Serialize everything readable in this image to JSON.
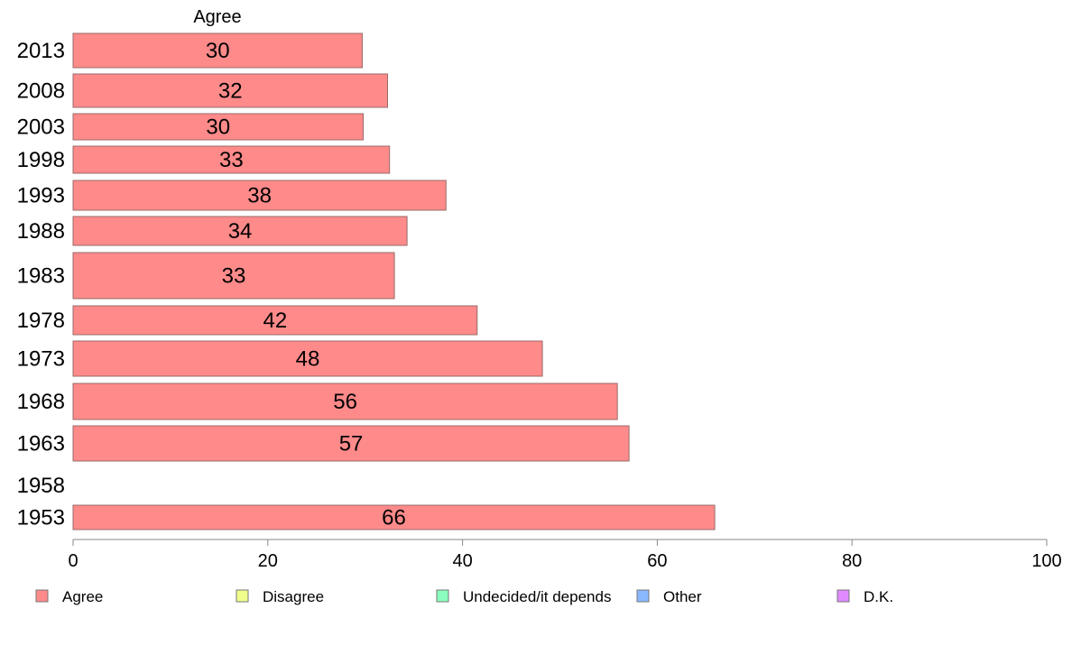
{
  "chart_data": {
    "type": "bar",
    "orientation": "horizontal",
    "title": "Agree",
    "categories": [
      "2013",
      "2008",
      "2003",
      "1998",
      "1993",
      "1988",
      "1983",
      "1978",
      "1973",
      "1968",
      "1963",
      "1958",
      "1953"
    ],
    "series": [
      {
        "name": "Agree",
        "color": "#ff8a8a",
        "values": [
          29.7,
          32.3,
          29.8,
          32.5,
          38.3,
          34.3,
          33.0,
          41.5,
          48.2,
          55.9,
          57.1,
          null,
          65.9
        ],
        "labels": [
          "30",
          "32",
          "30",
          "33",
          "38",
          "34",
          "33",
          "42",
          "48",
          "56",
          "57",
          "",
          "66"
        ]
      }
    ],
    "xlim": [
      0,
      100
    ],
    "xticks": [
      "0",
      "20",
      "40",
      "60",
      "80",
      "100"
    ],
    "grid": false,
    "legend": {
      "position": "bottom",
      "items": [
        {
          "label": "Agree",
          "color": "#ff8a8a"
        },
        {
          "label": "Disagree",
          "color": "#f0ff8a"
        },
        {
          "label": "Undecided/it depends",
          "color": "#8affbe"
        },
        {
          "label": "Other",
          "color": "#8ab8ff"
        },
        {
          "label": "D.K.",
          "color": "#e08aff"
        }
      ]
    }
  }
}
